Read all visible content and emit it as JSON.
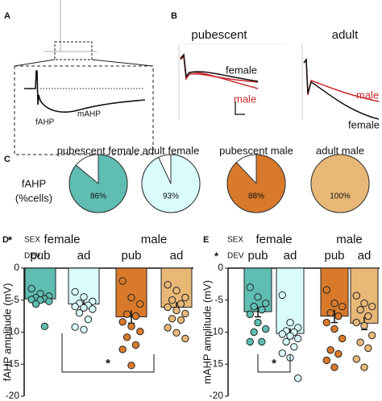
{
  "panel_labels": [
    "A",
    "B",
    "C",
    "D",
    "E"
  ],
  "panel_a": {
    "labels": [
      "fAHP",
      "mAHP"
    ]
  },
  "panel_b": {
    "titles": [
      "pubescent",
      "adult"
    ],
    "trace_labels": [
      "female",
      "male",
      "male",
      "female"
    ]
  },
  "panel_c": {
    "ylabel": [
      "fAHP",
      "(%cells)"
    ]
  },
  "chart_data": [
    {
      "type": "pie",
      "title": "pubescent female",
      "values": [
        86
      ],
      "value_labels": [
        "86%"
      ],
      "colors": [
        "#5fbdb2"
      ]
    },
    {
      "type": "pie",
      "title": "adult female",
      "values": [
        93
      ],
      "value_labels": [
        "93%"
      ],
      "colors": [
        "#d9fbfb"
      ]
    },
    {
      "type": "pie",
      "title": "pubescent male",
      "values": [
        88
      ],
      "value_labels": [
        "88%"
      ],
      "colors": [
        "#d97a2b"
      ]
    },
    {
      "type": "pie",
      "title": "adult male",
      "values": [
        100
      ],
      "value_labels": [
        "100%"
      ],
      "colors": [
        "#e8b877"
      ]
    },
    {
      "type": "bar",
      "ylabel": "fAHP amplitude (mV)",
      "sex_label": "SEX",
      "dev_label": "DEV",
      "sex_mark": "*",
      "sexes": [
        "female",
        "male"
      ],
      "categories": [
        "pub",
        "ad",
        "pub",
        "ad"
      ],
      "colors": [
        "#5fbdb2",
        "#d9fbfb",
        "#d97a2b",
        "#e8b877"
      ],
      "values": [
        -4.8,
        -5.6,
        -7.6,
        -6.1
      ],
      "errors": [
        0.5,
        0.5,
        1.0,
        0.8
      ],
      "points": [
        [
          -3.2,
          -4.0,
          -4.4,
          -4.6,
          -4.8,
          -4.9,
          -5.0,
          -5.2,
          -5.6,
          -9.1
        ],
        [
          -3.7,
          -4.5,
          -5.2,
          -5.5,
          -5.8,
          -6.0,
          -6.2,
          -6.4,
          -7.0,
          -8.0,
          -9.2,
          -9.6
        ],
        [
          -2.0,
          -4.6,
          -5.6,
          -7.2,
          -7.5,
          -8.4,
          -9.1,
          -9.9,
          -10.8,
          -12.0,
          -12.7,
          -15.2
        ],
        [
          -2.6,
          -3.5,
          -4.6,
          -5.0,
          -5.6,
          -6.1,
          -6.6,
          -7.1,
          -7.9,
          -8.1,
          -9.3,
          -10.1,
          -11.0
        ]
      ],
      "ylim": [
        -20,
        0
      ],
      "yticks": [
        0,
        -5,
        -10,
        -15,
        -20
      ],
      "bracket": {
        "label": "*",
        "groups": [
          [
            0,
            1
          ],
          [
            2,
            3
          ]
        ]
      }
    },
    {
      "type": "bar",
      "ylabel": "mAHP amplitude (mV)",
      "sex_label": "SEX",
      "dev_label": "DEV",
      "dev_mark": "*",
      "sexes": [
        "female",
        "male"
      ],
      "categories": [
        "pub",
        "ad",
        "pub",
        "ad"
      ],
      "colors": [
        "#5fbdb2",
        "#d9fbfb",
        "#d97a2b",
        "#e8b877"
      ],
      "values": [
        -6.8,
        -10.2,
        -7.5,
        -8.6
      ],
      "errors": [
        0.8,
        0.8,
        1.0,
        1.0
      ],
      "points": [
        [
          -3.0,
          -4.5,
          -5.5,
          -6.0,
          -6.5,
          -7.2,
          -8.5,
          -9.5,
          -10.0,
          -11.5,
          -11.5
        ],
        [
          -4.2,
          -8.5,
          -9.3,
          -9.8,
          -10.0,
          -10.3,
          -10.6,
          -11.0,
          -11.5,
          -12.3,
          -13.3,
          -14.0,
          -17.2
        ],
        [
          -3.4,
          -5.5,
          -6.0,
          -7.0,
          -7.5,
          -8.5,
          -9.5,
          -11.0,
          -12.8,
          -13.4,
          -14.4,
          -15.5
        ],
        [
          -4.3,
          -5.5,
          -6.0,
          -6.5,
          -7.5,
          -8.5,
          -9.0,
          -10.5,
          -11.6,
          -12.5,
          -14.2,
          -15.5
        ]
      ],
      "ylim": [
        -20,
        0
      ],
      "yticks": [
        0,
        -5,
        -10,
        -15,
        -20
      ],
      "bracket": {
        "label": "*",
        "groups": [
          [
            0
          ],
          [
            1
          ]
        ]
      }
    }
  ]
}
